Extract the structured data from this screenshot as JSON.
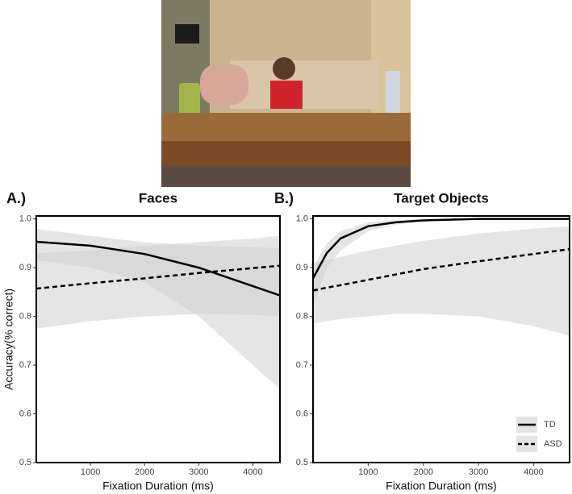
{
  "chart_data": [
    {
      "type": "line",
      "panel_label": "A.)",
      "title": "Faces",
      "x_label": "Fixation Duration (ms)",
      "y_label": "Accuracy(% correct)",
      "x": [
        0,
        1000,
        2000,
        3000,
        4000,
        4500
      ],
      "series": [
        {
          "name": "TD",
          "color": "#000000",
          "style": "solid",
          "values": [
            0.953,
            0.945,
            0.928,
            0.9,
            0.862,
            0.843
          ],
          "ci_lower": [
            0.915,
            0.9,
            0.87,
            0.8,
            0.7,
            0.65
          ],
          "ci_upper": [
            0.98,
            0.965,
            0.952,
            0.945,
            0.942,
            0.94
          ]
        },
        {
          "name": "ASD",
          "color": "#000000",
          "style": "dashed",
          "values": [
            0.857,
            0.868,
            0.878,
            0.889,
            0.899,
            0.904
          ],
          "ci_lower": [
            0.775,
            0.79,
            0.8,
            0.805,
            0.803,
            0.8
          ],
          "ci_upper": [
            0.93,
            0.935,
            0.945,
            0.952,
            0.96,
            0.965
          ]
        }
      ],
      "xlim": [
        0,
        4500
      ],
      "ylim": [
        0.5,
        1.006
      ],
      "xticks": [
        1000,
        2000,
        3000,
        4000
      ],
      "yticks": [
        0.5,
        0.6,
        0.7,
        0.8,
        0.9,
        {
          "value": 1,
          "label": "1.0"
        }
      ]
    },
    {
      "type": "line",
      "panel_label": "B.)",
      "title": "Target Objects",
      "x_label": "Fixation Duration (ms)",
      "x": [
        0,
        250,
        500,
        1000,
        1500,
        2000,
        3000,
        4000,
        4650
      ],
      "series": [
        {
          "name": "TD",
          "color": "#000000",
          "style": "solid",
          "values": [
            0.878,
            0.93,
            0.96,
            0.985,
            0.993,
            0.997,
            1.0,
            1.0,
            1.0
          ],
          "ci_lower": [
            0.82,
            0.9,
            0.935,
            0.975,
            0.988,
            0.995,
            0.999,
            1.0,
            1.0
          ],
          "ci_upper": [
            0.9,
            0.95,
            0.975,
            0.993,
            0.998,
            1.0,
            1.0,
            1.0,
            1.0
          ]
        },
        {
          "name": "ASD",
          "color": "#000000",
          "style": "dashed",
          "values": [
            0.853,
            0.859,
            0.864,
            0.875,
            0.886,
            0.897,
            0.913,
            0.928,
            0.938
          ],
          "ci_lower": [
            0.785,
            0.79,
            0.795,
            0.8,
            0.805,
            0.805,
            0.8,
            0.78,
            0.76
          ],
          "ci_upper": [
            0.91,
            0.915,
            0.922,
            0.935,
            0.945,
            0.955,
            0.97,
            0.98,
            0.985
          ]
        }
      ],
      "xlim": [
        0,
        4650
      ],
      "ylim": [
        0.5,
        1.006
      ],
      "xticks": [
        1000,
        2000,
        3000,
        4000
      ],
      "yticks": [
        0.5,
        0.6,
        0.7,
        0.8,
        0.9,
        {
          "value": 1,
          "label": "1.0"
        }
      ],
      "legend": "bottom-right"
    }
  ]
}
